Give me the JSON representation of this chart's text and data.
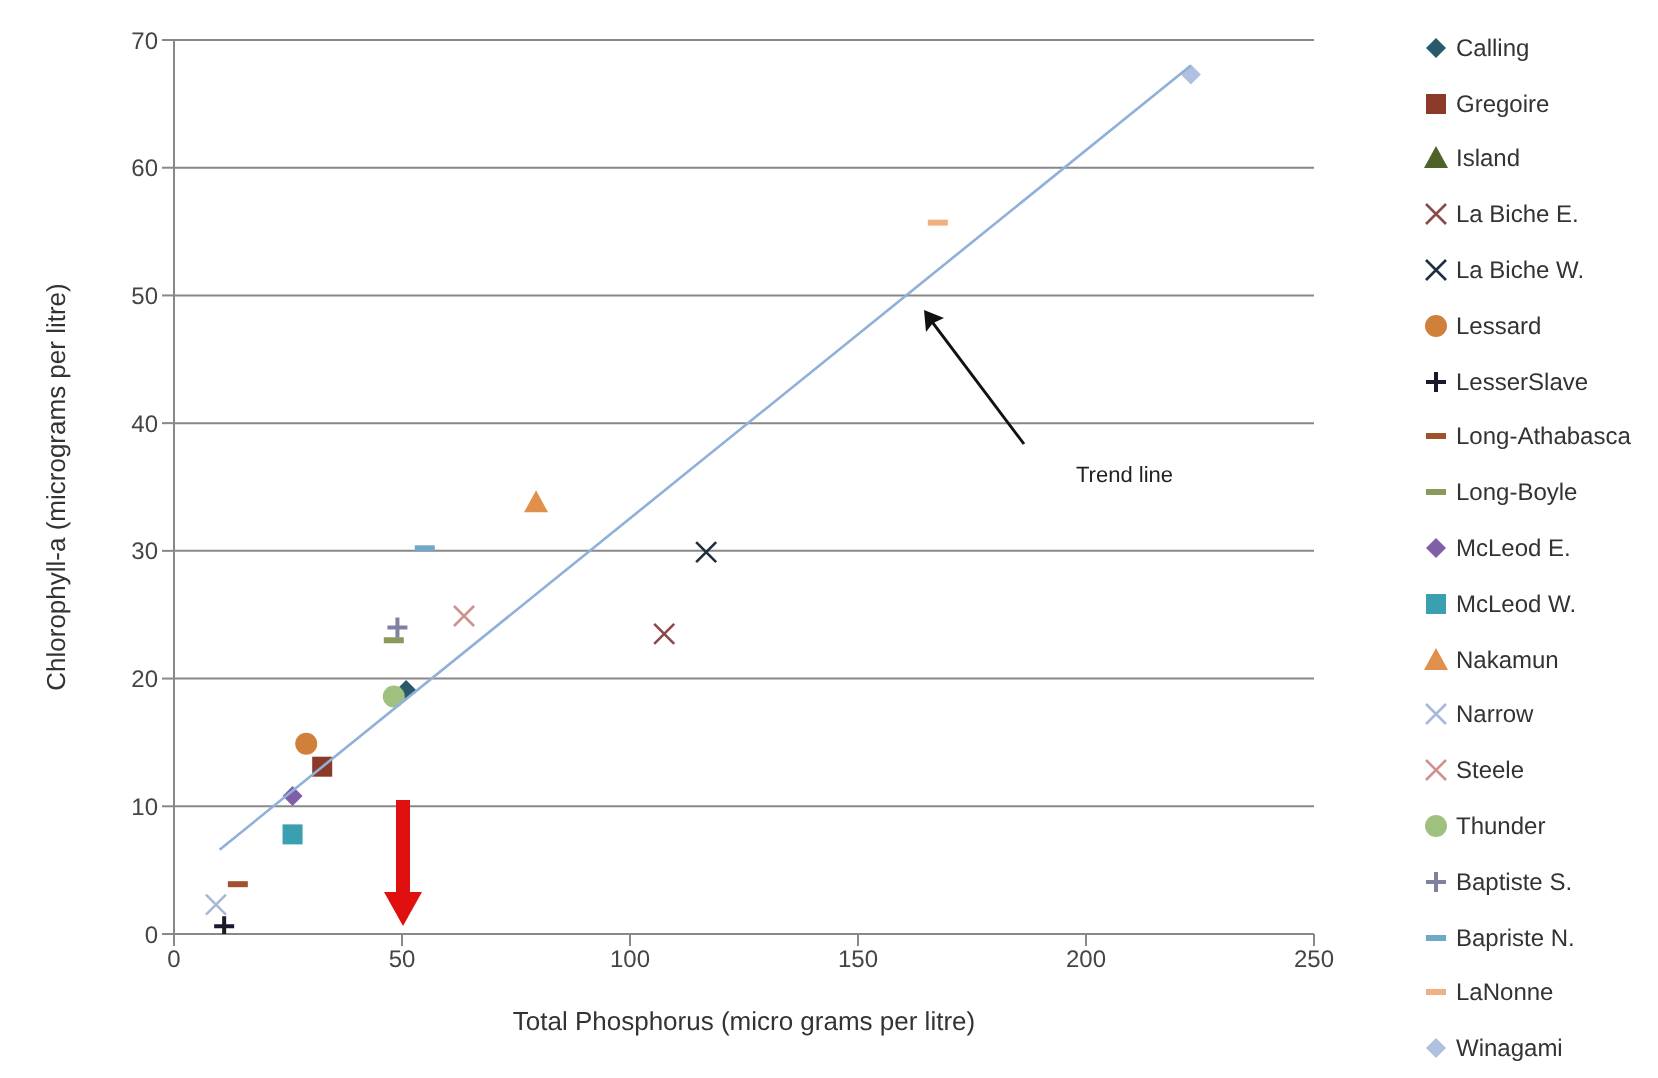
{
  "chart_data": {
    "type": "scatter",
    "xlabel": "Total Phosphorus (micro grams per litre)",
    "ylabel": "Chlorophyll-a  (micrograms per litre)",
    "xlim": [
      0,
      250
    ],
    "xticks": [
      0,
      50,
      100,
      150,
      200,
      250
    ],
    "ylim": [
      0,
      70
    ],
    "yticks": [
      0,
      10,
      20,
      30,
      40,
      50,
      60,
      70
    ],
    "grid": "y",
    "legend": "right",
    "annotations": [
      "Trend line"
    ],
    "series": [
      {
        "name": "Calling",
        "color": "#2a5a6a",
        "marker": "diamond",
        "x": [
          50.9
        ],
        "values": [
          19.1
        ]
      },
      {
        "name": "Gregoire",
        "color": "#8b3a2a",
        "marker": "square",
        "x": [
          32.5
        ],
        "values": [
          13.1
        ]
      },
      {
        "name": "Island",
        "color": "#4f6228",
        "marker": "triangle",
        "x": [
          null
        ],
        "values": [
          null
        ]
      },
      {
        "name": "La Biche E.",
        "color": "#8a4a4a",
        "marker": "cross",
        "x": [
          107.5
        ],
        "values": [
          23.5
        ]
      },
      {
        "name": "La Biche W.",
        "color": "#1f2f3f",
        "marker": "cross",
        "x": [
          116.7
        ],
        "values": [
          29.9
        ]
      },
      {
        "name": "Lessard",
        "color": "#d0803a",
        "marker": "circle",
        "x": [
          29
        ],
        "values": [
          14.9
        ]
      },
      {
        "name": "LesserSlave",
        "color": "#1a1a2a",
        "marker": "plus",
        "x": [
          11
        ],
        "values": [
          0.6
        ]
      },
      {
        "name": "Long-Athabasca",
        "color": "#a0522d",
        "x": [
          14
        ],
        "values": [
          3.9
        ]
      },
      {
        "name": "Long-Boyle",
        "color": "#8a9a5b",
        "x": [
          48.2
        ],
        "values": [
          23
        ]
      },
      {
        "name": "McLeod E.",
        "color": "#7f60a8",
        "marker": "diamond",
        "x": [
          26
        ],
        "values": [
          10.8
        ]
      },
      {
        "name": "McLeod W.",
        "color": "#3aa0b0",
        "marker": "square",
        "x": [
          26
        ],
        "values": [
          7.8
        ]
      },
      {
        "name": "Nakamun",
        "color": "#e0904a",
        "marker": "triangle",
        "x": [
          79.4
        ],
        "values": [
          33.8
        ]
      },
      {
        "name": "Narrow",
        "color": "#a8b8d8",
        "marker": "cross",
        "x": [
          9.2
        ],
        "values": [
          2.3
        ]
      },
      {
        "name": "Steele",
        "color": "#d09090",
        "marker": "cross",
        "x": [
          63.6
        ],
        "values": [
          24.9
        ]
      },
      {
        "name": "Thunder",
        "color": "#a0c080",
        "marker": "circle",
        "x": [
          48.2
        ],
        "values": [
          18.6
        ]
      },
      {
        "name": "Baptiste S.",
        "color": "#8080a0",
        "marker": "plus",
        "x": [
          49
        ],
        "values": [
          24
        ]
      },
      {
        "name": "Bapriste N.",
        "color": "#70a8c8",
        "x": [
          55
        ],
        "values": [
          30.2
        ]
      },
      {
        "name": "LaNonne",
        "color": "#f0b080",
        "x": [
          167.5
        ],
        "values": [
          55.7
        ]
      },
      {
        "name": "Winagami",
        "color": "#b0c0e0",
        "marker": "diamond",
        "x": [
          223
        ],
        "values": [
          67.3
        ]
      },
      {
        "type": "line",
        "color": "#8fb0d8",
        "marker": "none",
        "x": [
          10,
          223
        ],
        "values": [
          6.6,
          68
        ]
      }
    ]
  }
}
